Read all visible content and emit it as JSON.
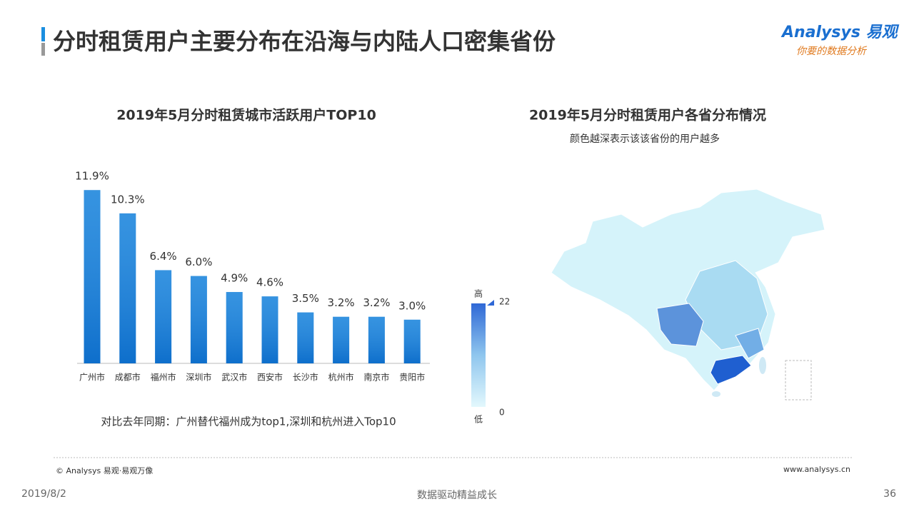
{
  "title": "分时租赁用户主要分布在沿海与内陆人口密集省份",
  "logo": {
    "brand": "Analysys 易观",
    "slogan": "你要的数据分析"
  },
  "chart_data": {
    "type": "bar",
    "title": "2019年5月分时租赁城市活跃用户TOP10",
    "categories": [
      "广州市",
      "成都市",
      "福州市",
      "深圳市",
      "武汉市",
      "西安市",
      "长沙市",
      "杭州市",
      "南京市",
      "贵阳市"
    ],
    "values": [
      11.9,
      10.3,
      6.4,
      6.0,
      4.9,
      4.6,
      3.5,
      3.2,
      3.2,
      3.0
    ],
    "value_labels": [
      "11.9%",
      "10.3%",
      "6.4%",
      "6.0%",
      "4.9%",
      "4.6%",
      "3.5%",
      "3.2%",
      "3.2%",
      "3.0%"
    ],
    "color": "#1280db",
    "note": "对比去年同期：广州替代福州成为top1,深圳和杭州进入Top10"
  },
  "map": {
    "title": "2019年5月分时租赁用户各省分布情况",
    "subtitle": "颜色越深表示该该省份的用户越多",
    "legend": {
      "high_label": "高",
      "low_label": "低",
      "max": "22",
      "min": "0"
    }
  },
  "footer": {
    "copyright": "© Analysys 易观·易观万像",
    "website": "www.analysys.cn",
    "date": "2019/8/2",
    "slogan": "数据驱动精益成长",
    "page": "36"
  }
}
